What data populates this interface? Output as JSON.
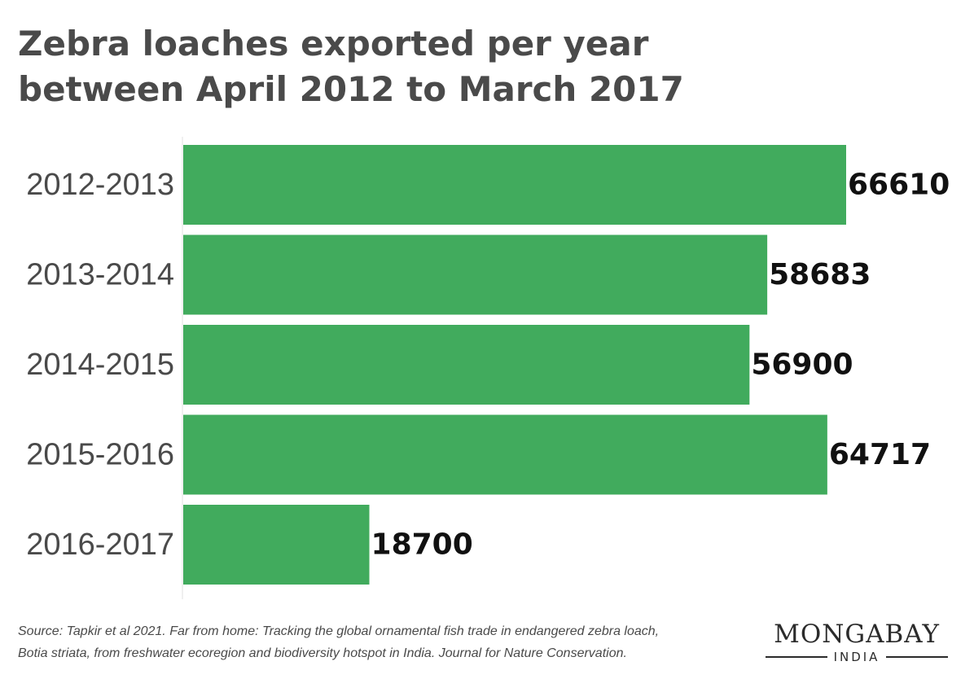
{
  "chart_data": {
    "type": "bar",
    "orientation": "horizontal",
    "title_lines": [
      "Zebra loaches exported per year",
      "between April 2012 to March 2017"
    ],
    "categories": [
      "2012-2013",
      "2013-2014",
      "2014-2015",
      "2015-2016",
      "2016-2017"
    ],
    "values": [
      66610,
      58683,
      56900,
      64717,
      18700
    ],
    "value_labels": [
      "66610",
      "58683",
      "56900",
      "64717",
      "18700"
    ],
    "xlim": [
      0,
      66610
    ],
    "grid": false,
    "legend": "none",
    "bar_color": "#41ab5d"
  },
  "source": {
    "lines": [
      "Source: Tapkir et al 2021. Far from home: Tracking the global ornamental fish trade in endangered zebra loach,",
      "Botia striata, from freshwater ecoregion and biodiversity hotspot in India. Journal for Nature Conservation."
    ]
  },
  "logo": {
    "main": "MONGABAY",
    "sub": "INDIA"
  }
}
